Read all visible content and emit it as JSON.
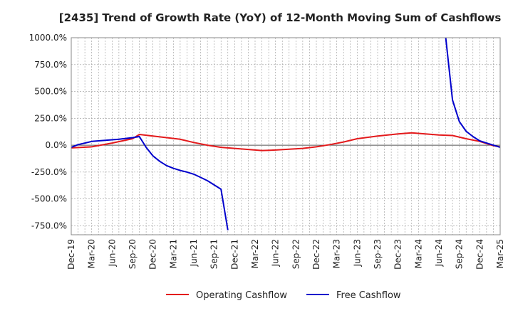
{
  "chart_data": {
    "type": "line",
    "title": "[2435]  Trend of Growth Rate (YoY) of 12-Month Moving Sum of Cashflows",
    "xlabel": "",
    "ylabel": "",
    "ylim": [
      -833.3,
      1000
    ],
    "yticks": [
      1000,
      750,
      500,
      250,
      0,
      -250,
      -500,
      -750
    ],
    "ytick_labels": [
      "1000.0%",
      "750.0%",
      "500.0%",
      "250.0%",
      "0.0%",
      "-250.0%",
      "-500.0%",
      "-750.0%"
    ],
    "x_categories": [
      "Dec-19",
      "Mar-20",
      "Jun-20",
      "Sep-20",
      "Dec-20",
      "Mar-21",
      "Jun-21",
      "Sep-21",
      "Dec-21",
      "Mar-22",
      "Jun-22",
      "Sep-22",
      "Dec-22",
      "Mar-23",
      "Jun-23",
      "Sep-23",
      "Dec-23",
      "Mar-24",
      "Jun-24",
      "Sep-24",
      "Dec-24",
      "Mar-25"
    ],
    "x_index_range": [
      0,
      63
    ],
    "grid": true,
    "legend_position": "bottom",
    "series": [
      {
        "name": "Operating Cashflow",
        "color": "#e31a1c",
        "points": [
          [
            0,
            -25
          ],
          [
            3,
            -15
          ],
          [
            6,
            20
          ],
          [
            9,
            60
          ],
          [
            10,
            100
          ],
          [
            12,
            85
          ],
          [
            14,
            70
          ],
          [
            16,
            55
          ],
          [
            18,
            25
          ],
          [
            20,
            0
          ],
          [
            22,
            -20
          ],
          [
            24,
            -30
          ],
          [
            26,
            -40
          ],
          [
            28,
            -50
          ],
          [
            30,
            -45
          ],
          [
            32,
            -38
          ],
          [
            34,
            -30
          ],
          [
            36,
            -15
          ],
          [
            38,
            5
          ],
          [
            40,
            30
          ],
          [
            42,
            60
          ],
          [
            45,
            85
          ],
          [
            48,
            105
          ],
          [
            50,
            115
          ],
          [
            52,
            105
          ],
          [
            54,
            95
          ],
          [
            56,
            90
          ],
          [
            58,
            60
          ],
          [
            60,
            35
          ],
          [
            62,
            -5
          ],
          [
            63,
            -15
          ]
        ]
      },
      {
        "name": "Free Cashflow",
        "color": "#0000cc",
        "points": [
          [
            0,
            -20
          ],
          [
            1,
            5
          ],
          [
            2,
            20
          ],
          [
            3,
            35
          ],
          [
            5,
            45
          ],
          [
            7,
            55
          ],
          [
            9,
            70
          ],
          [
            10,
            80
          ],
          [
            11,
            -20
          ],
          [
            12,
            -100
          ],
          [
            13,
            -150
          ],
          [
            14,
            -190
          ],
          [
            15,
            -215
          ],
          [
            16,
            -235
          ],
          [
            17,
            -250
          ],
          [
            18,
            -270
          ],
          [
            19,
            -300
          ],
          [
            20,
            -330
          ],
          [
            21,
            -370
          ],
          [
            22,
            -410
          ],
          [
            23,
            -790
          ]
        ]
      },
      {
        "name": "Free Cashflow (return)",
        "color": "#0000cc",
        "points": [
          [
            55,
            1000
          ],
          [
            56,
            420
          ],
          [
            57,
            220
          ],
          [
            58,
            130
          ],
          [
            59,
            80
          ],
          [
            60,
            40
          ],
          [
            61,
            20
          ],
          [
            62,
            0
          ],
          [
            63,
            -20
          ]
        ]
      }
    ]
  },
  "legend": [
    {
      "label": "Operating Cashflow",
      "color": "#e31a1c"
    },
    {
      "label": "Free Cashflow",
      "color": "#0000cc"
    }
  ]
}
